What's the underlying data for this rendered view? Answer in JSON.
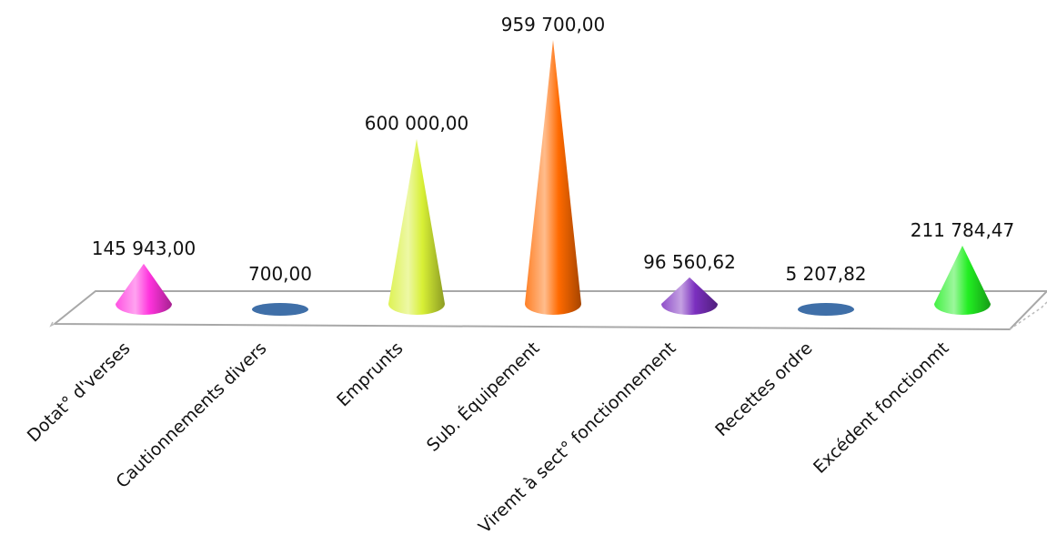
{
  "chart_data": {
    "type": "bar",
    "shape": "cone",
    "categories": [
      "Dotat° d'verses",
      "Cautionnements divers",
      "Emprunts",
      "Sub. Équipement",
      "Viremt à sect° fonctionnement",
      "Recettes ordre",
      "Excédent fonctionmt"
    ],
    "values": [
      145943.0,
      700.0,
      600000.0,
      959700.0,
      96560.62,
      5207.82,
      211784.47
    ],
    "value_labels": [
      "145 943,00",
      "700,00",
      "600 000,00",
      "959 700,00",
      "96 560,62",
      "5 207,82",
      "211 784,47"
    ],
    "colors": [
      "#ff33dd",
      "#3f6fa8",
      "#d8f036",
      "#ff6a00",
      "#7b2fbf",
      "#3f6fa8",
      "#22ee22"
    ],
    "grid": false,
    "legend": "none"
  }
}
